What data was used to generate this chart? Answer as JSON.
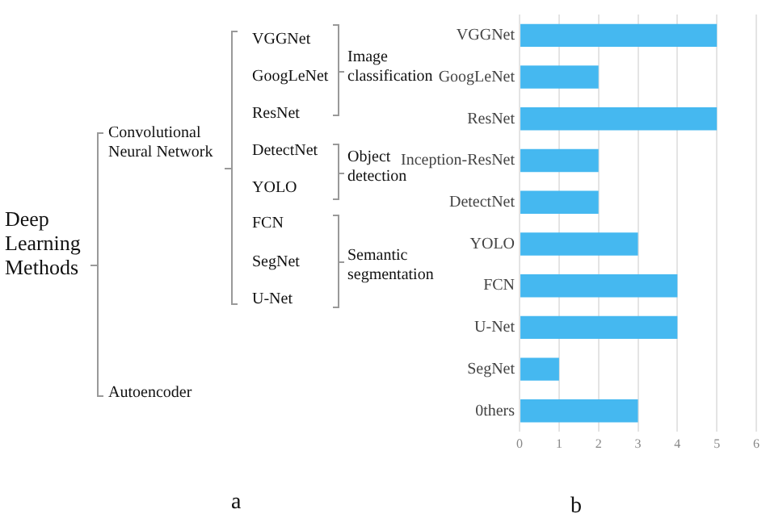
{
  "chart_data": [
    {
      "type": "other",
      "title": "a",
      "annotations": [
        "Deep Learning Methods",
        "Convolutional Neural Network",
        "Autoencoder",
        "VGGNet",
        "GoogLeNet",
        "ResNet",
        "DetectNet",
        "YOLO",
        "FCN",
        "SegNet",
        "U-Net",
        "Image classification",
        "Object detection",
        "Semantic segmentation"
      ]
    },
    {
      "type": "bar",
      "orientation": "horizontal",
      "title": "b",
      "categories": [
        "VGGNet",
        "GoogLeNet",
        "ResNet",
        "Inception-ResNet",
        "DetectNet",
        "YOLO",
        "FCN",
        "U-Net",
        "SegNet",
        "0thers"
      ],
      "values": [
        5,
        2,
        5,
        2,
        2,
        3,
        4,
        4,
        1,
        3
      ],
      "color": "#45b8f0",
      "xlim": [
        0,
        6
      ],
      "xticks": [
        0,
        1,
        2,
        3,
        4,
        5,
        6
      ],
      "grid": "x"
    }
  ]
}
